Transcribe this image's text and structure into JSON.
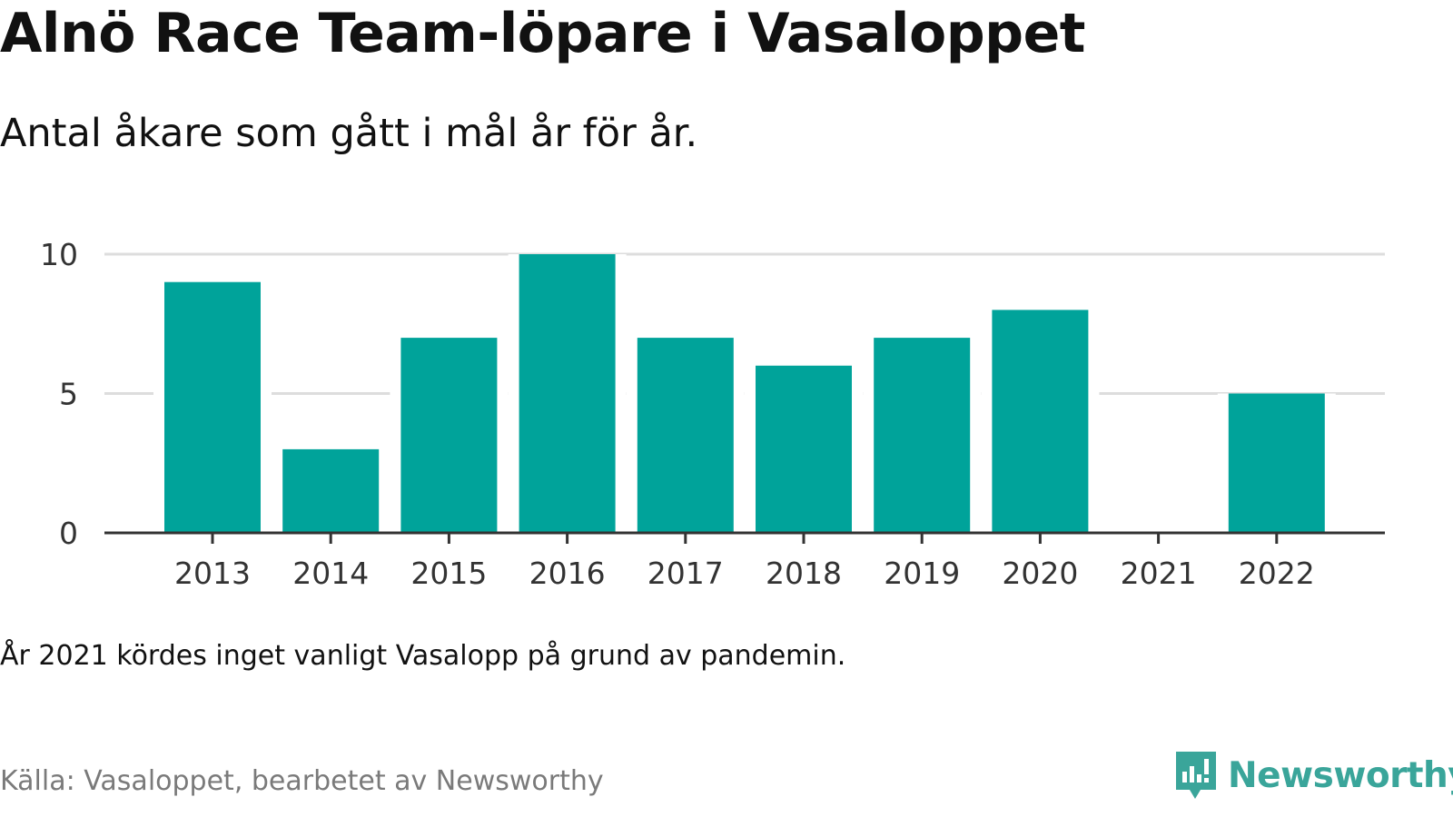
{
  "title": "Alnö Race Team-löpare i Vasaloppet",
  "subtitle": "Antal åkare som gått i mål år för år.",
  "note": "År 2021 kördes inget vanligt Vasalopp på grund av pandemin.",
  "source": "Källa: Vasaloppet, bearbetet av Newsworthy",
  "brand": {
    "name": "Newsworthy",
    "icon": "newsworthy-logo-icon"
  },
  "colors": {
    "bar": "#00a39a",
    "grid": "#dddddd",
    "axis": "#333333",
    "brand": "#3aa59a"
  },
  "chart_data": {
    "type": "bar",
    "categories": [
      "2013",
      "2014",
      "2015",
      "2016",
      "2017",
      "2018",
      "2019",
      "2020",
      "2021",
      "2022"
    ],
    "values": [
      9,
      3,
      7,
      10,
      7,
      6,
      7,
      8,
      0,
      5
    ],
    "ylim": [
      0,
      10
    ],
    "yticks": [
      0,
      5,
      10
    ],
    "grid": true,
    "xlabel": "",
    "ylabel": ""
  }
}
